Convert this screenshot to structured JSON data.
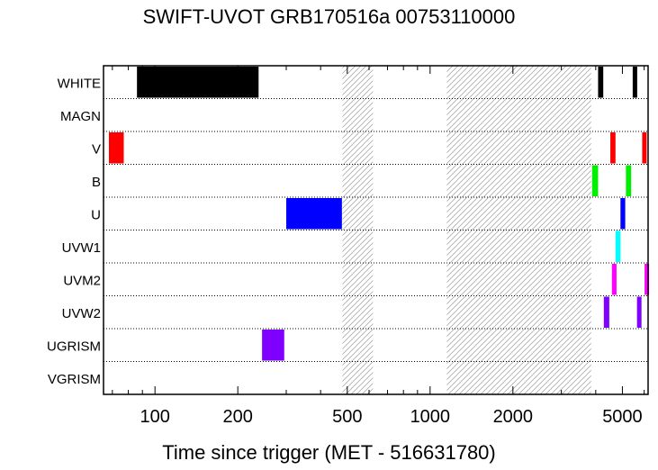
{
  "chart_data": {
    "type": "bar",
    "title": "SWIFT-UVOT GRB170516a 00753110000",
    "xlabel": "Time since trigger (MET - 516631780)",
    "ylabel": "",
    "xscale": "log",
    "xlim": [
      65,
      6200
    ],
    "x_tick_labels": [
      {
        "value": 100,
        "label": "100"
      },
      {
        "value": 200,
        "label": "200"
      },
      {
        "value": 500,
        "label": "500"
      },
      {
        "value": 1000,
        "label": "1000"
      },
      {
        "value": 2000,
        "label": "2000"
      },
      {
        "value": 5000,
        "label": "5000"
      }
    ],
    "categories": [
      "WHITE",
      "MAGN",
      "V",
      "B",
      "U",
      "UVW1",
      "UVM2",
      "UVW2",
      "UGRISM",
      "VGRISM"
    ],
    "gaps": [
      [
        480,
        620
      ],
      [
        1150,
        3850
      ]
    ],
    "exposures": [
      {
        "filter": "WHITE",
        "start": 86,
        "end": 238,
        "color": "#000000"
      },
      {
        "filter": "WHITE",
        "start": 4080,
        "end": 4260,
        "color": "#000000"
      },
      {
        "filter": "WHITE",
        "start": 5450,
        "end": 5650,
        "color": "#000000"
      },
      {
        "filter": "V",
        "start": 68,
        "end": 77,
        "color": "#ff0000"
      },
      {
        "filter": "V",
        "start": 4520,
        "end": 4720,
        "color": "#ff0000"
      },
      {
        "filter": "V",
        "start": 5900,
        "end": 6100,
        "color": "#ff0000"
      },
      {
        "filter": "B",
        "start": 3880,
        "end": 4080,
        "color": "#00ee00"
      },
      {
        "filter": "B",
        "start": 5150,
        "end": 5380,
        "color": "#00ee00"
      },
      {
        "filter": "U",
        "start": 300,
        "end": 478,
        "color": "#0000ff"
      },
      {
        "filter": "U",
        "start": 4920,
        "end": 5120,
        "color": "#0000ff"
      },
      {
        "filter": "UVW1",
        "start": 4720,
        "end": 4920,
        "color": "#00ffff"
      },
      {
        "filter": "UVM2",
        "start": 4580,
        "end": 4760,
        "color": "#ff00ff"
      },
      {
        "filter": "UVM2",
        "start": 6020,
        "end": 6200,
        "color": "#ff00ff"
      },
      {
        "filter": "UVW2",
        "start": 4280,
        "end": 4480,
        "color": "#7f00ff"
      },
      {
        "filter": "UVW2",
        "start": 5650,
        "end": 5850,
        "color": "#7f00ff"
      },
      {
        "filter": "UGRISM",
        "start": 245,
        "end": 295,
        "color": "#7f00ff"
      }
    ]
  }
}
